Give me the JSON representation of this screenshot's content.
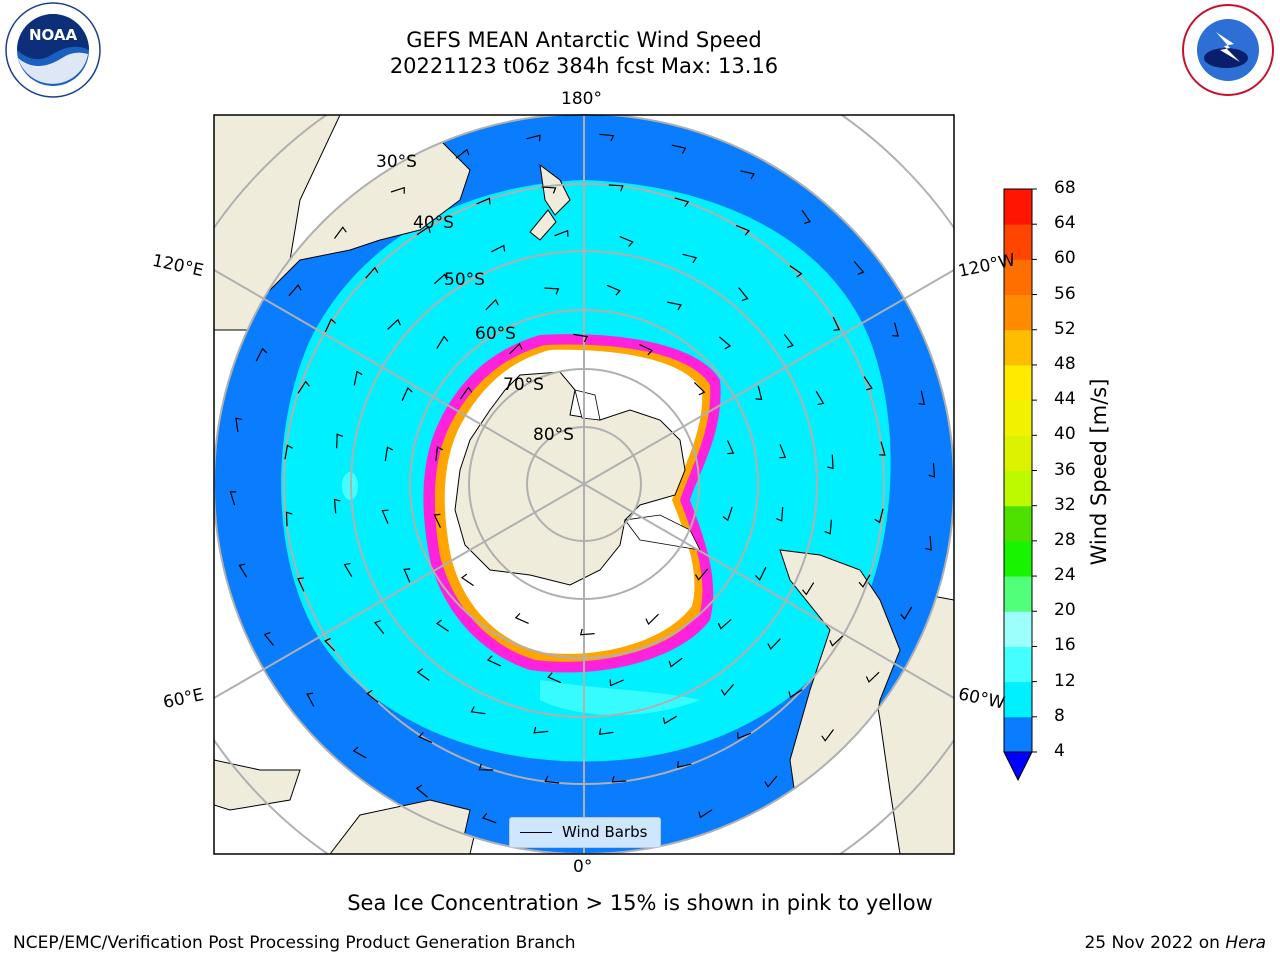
{
  "title": {
    "line1": "GEFS MEAN Antarctic Wind Speed",
    "line2": "20221123 t06z 384h fcst   Max: 13.16"
  },
  "logos": {
    "left": {
      "name": "NOAA",
      "icon": "noaa-logo"
    },
    "right": {
      "name": "National Weather Service",
      "icon": "nws-logo"
    }
  },
  "map": {
    "projection": "south-polar-stereographic",
    "meridian_labels": {
      "top": "180°",
      "bottom": "0°",
      "left_upper": "120°E",
      "left_lower": "60°E",
      "right_upper": "120°W",
      "right_lower": "60°W"
    },
    "parallel_labels": [
      "30°S",
      "40°S",
      "50°S",
      "60°S",
      "70°S",
      "80°S"
    ],
    "legend_label": "Wind Barbs",
    "colors": {
      "land": "#efecdc",
      "ocean_4_8": "#0a7cfe",
      "ocean_8_12": "#00f0ff",
      "ocean_12_16": "#45ffff",
      "sea_ice_low": "#ff22dd",
      "sea_ice_high": "#ffe000",
      "ice_interior": "#ffffff"
    }
  },
  "colorbar": {
    "title": "Wind Speed [m/s]",
    "ticks": [
      "4",
      "8",
      "12",
      "16",
      "20",
      "24",
      "28",
      "32",
      "36",
      "40",
      "44",
      "48",
      "52",
      "56",
      "60",
      "64",
      "68"
    ],
    "colors": [
      "#0a7cfe",
      "#00f0ff",
      "#45ffff",
      "#9cfffc",
      "#52ff7a",
      "#18f400",
      "#4ee100",
      "#bdfa00",
      "#dcf200",
      "#f2f200",
      "#ffea00",
      "#ffbd00",
      "#ff8c00",
      "#ff6f00",
      "#ff4500",
      "#ff1500"
    ],
    "extend_min_color": "#0000ff"
  },
  "caption": "Sea Ice Concentration > 15% is shown in pink to yellow",
  "footer": {
    "left": "NCEP/EMC/Verification Post Processing Product Generation Branch",
    "right_prefix": "25 Nov 2022 on ",
    "right_italic": "Hera"
  }
}
